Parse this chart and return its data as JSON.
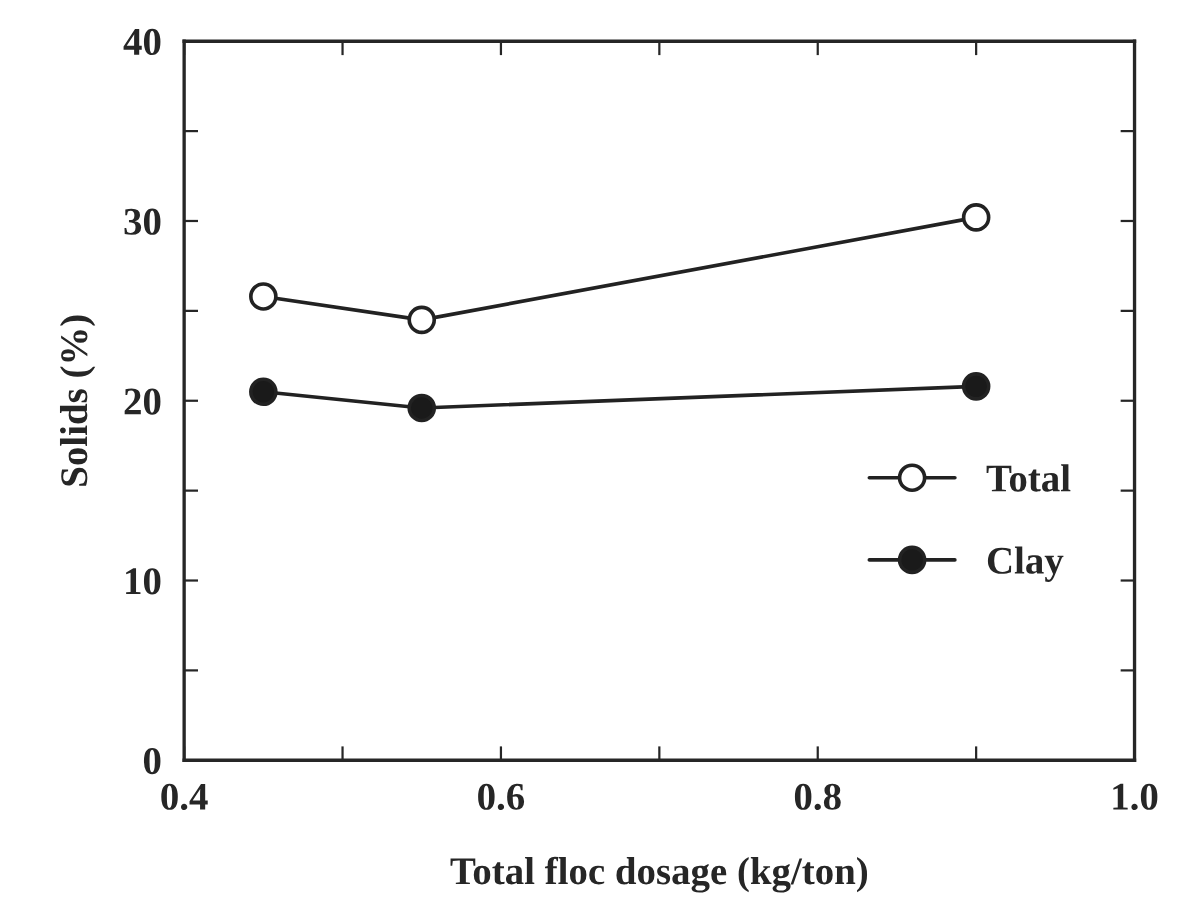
{
  "chart_data": {
    "type": "line",
    "xlabel": "Total floc dosage (kg/ton)",
    "ylabel": "Solids (%)",
    "x": [
      0.45,
      0.55,
      0.9
    ],
    "series": [
      {
        "name": "Total",
        "color": "#ffffff",
        "values": [
          25.8,
          24.5,
          30.2
        ]
      },
      {
        "name": "Clay",
        "color": "#1a1a1a",
        "values": [
          20.5,
          19.6,
          20.8
        ]
      }
    ],
    "xlim": [
      0.4,
      1.0
    ],
    "xticks": [
      0.4,
      {
        "value": 0.5,
        "label": null
      },
      0.6,
      {
        "value": 0.7,
        "label": null
      },
      0.8,
      {
        "value": 0.9,
        "label": null
      },
      {
        "value": 1.0,
        "label": "1.0"
      }
    ],
    "ylim": [
      0,
      40
    ],
    "yticks": [
      0,
      {
        "value": 5,
        "label": null
      },
      10,
      {
        "value": 15,
        "label": null
      },
      20,
      {
        "value": 25,
        "label": null
      },
      30,
      {
        "value": 35,
        "label": null
      },
      40
    ],
    "grid": false,
    "legend": "right",
    "marker": "circle",
    "line_style": "solid"
  }
}
